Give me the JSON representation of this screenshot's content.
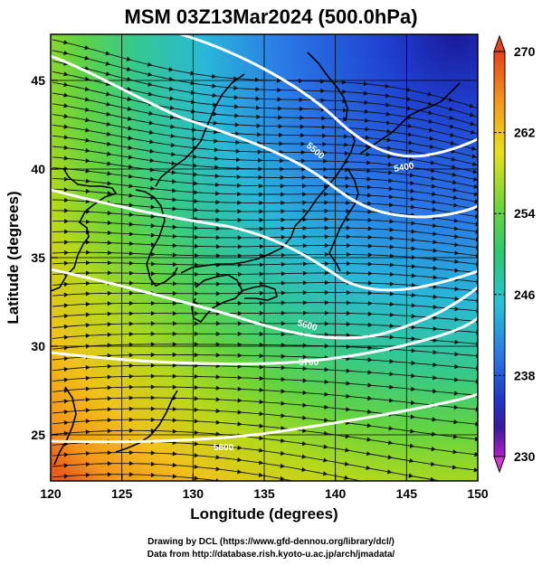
{
  "title": "MSM 03Z13Mar2024 (500.0hPa)",
  "credits": {
    "line1": "Drawing by DCL (https://www.gfd-dennou.org/library/dcl/)",
    "line2": "Data from http://database.rish.kyoto-u.ac.jp/arch/jmadata/"
  },
  "map": {
    "xlabel": "Longitude (degrees)",
    "ylabel": "Latitude  (degrees)",
    "lon_range": [
      120,
      150
    ],
    "lat_range": [
      22.4,
      47.6
    ],
    "lon_ticks": [
      "120",
      "125",
      "130",
      "135",
      "140",
      "145",
      "150"
    ],
    "lat_ticks": [
      "25",
      "30",
      "35",
      "40",
      "45"
    ],
    "contour_labels": [
      "5400",
      "5500",
      "5600",
      "5700",
      "5800"
    ]
  },
  "colorbar": {
    "min": 230,
    "max": 270,
    "tick_labels": [
      "270",
      "262",
      "254",
      "246",
      "238",
      "230"
    ]
  }
}
